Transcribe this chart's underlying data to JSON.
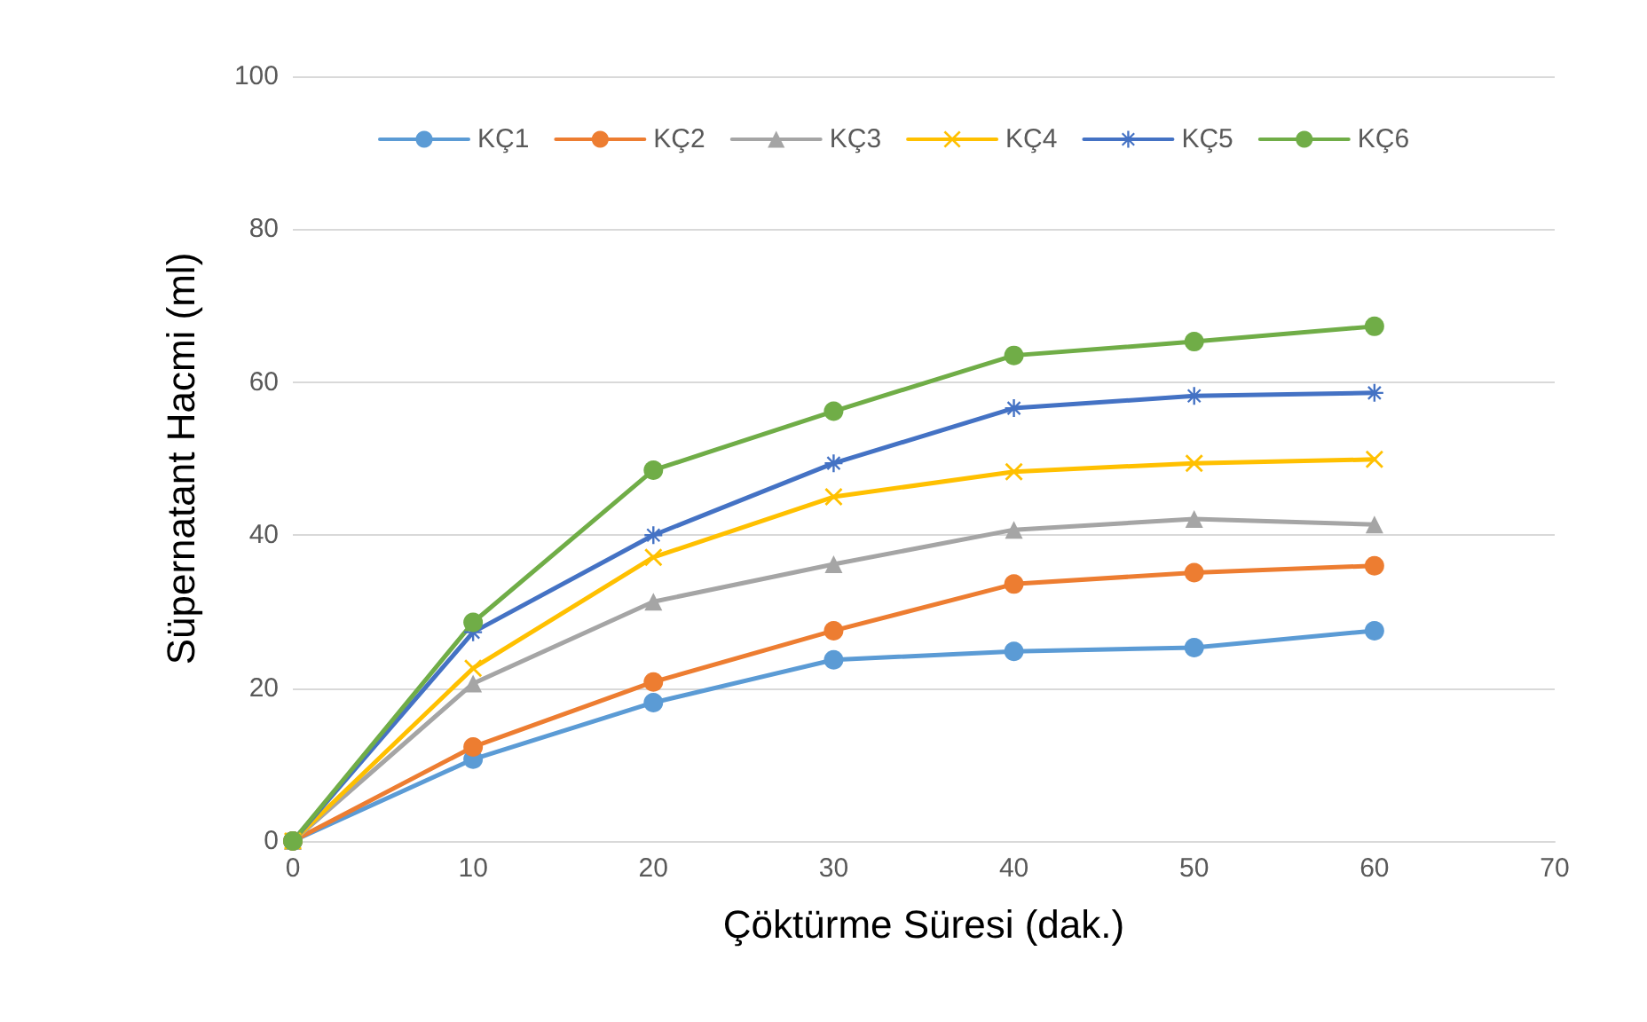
{
  "chart_data": {
    "type": "line",
    "xlabel": "Çöktürme Süresi (dak.)",
    "ylabel": "Süpernatant Hacmi (ml)",
    "x": [
      0,
      10,
      20,
      30,
      40,
      50,
      60
    ],
    "xlim": [
      0,
      70
    ],
    "xticks": [
      0,
      10,
      20,
      30,
      40,
      50,
      60,
      70
    ],
    "ylim": [
      0,
      100
    ],
    "yticks": [
      0,
      20,
      40,
      60,
      80,
      100
    ],
    "grid": "y",
    "legend": "top",
    "line_style": "solid",
    "series": [
      {
        "name": "KÇ1",
        "color": "#5b9bd5",
        "marker": "circle",
        "values": [
          0,
          10.7,
          18.1,
          23.7,
          24.8,
          25.3,
          27.5
        ]
      },
      {
        "name": "KÇ2",
        "color": "#ed7d31",
        "marker": "circle",
        "values": [
          0,
          12.3,
          20.8,
          27.5,
          33.6,
          35.1,
          36.0
        ]
      },
      {
        "name": "KÇ3",
        "color": "#a5a5a5",
        "marker": "triangle",
        "values": [
          0,
          20.6,
          31.3,
          36.2,
          40.7,
          42.1,
          41.4
        ]
      },
      {
        "name": "KÇ4",
        "color": "#ffc000",
        "marker": "cross",
        "values": [
          0,
          22.6,
          37.1,
          45.0,
          48.3,
          49.4,
          49.9
        ]
      },
      {
        "name": "KÇ5",
        "color": "#4472c4",
        "marker": "star",
        "values": [
          0,
          27.3,
          40.0,
          49.4,
          56.6,
          58.2,
          58.6
        ]
      },
      {
        "name": "KÇ6",
        "color": "#70ad47",
        "marker": "circle",
        "values": [
          0,
          28.6,
          48.5,
          56.2,
          63.5,
          65.3,
          67.3
        ]
      }
    ]
  }
}
